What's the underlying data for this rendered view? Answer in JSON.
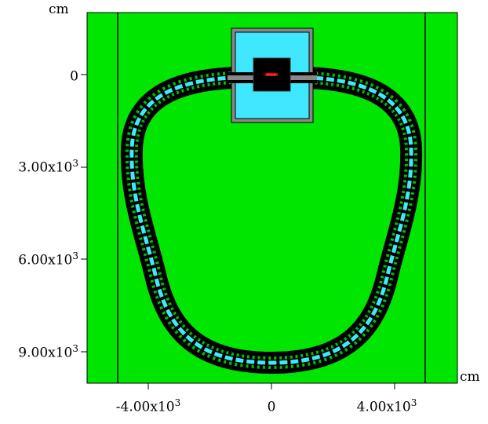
{
  "axes": {
    "y_unit": "cm",
    "x_unit": "cm",
    "y_ticks": [
      {
        "mantissa": "0",
        "exp": ""
      },
      {
        "mantissa": "3.00x10",
        "exp": "3"
      },
      {
        "mantissa": "6.00x10",
        "exp": "3"
      },
      {
        "mantissa": "9.00x10",
        "exp": "3"
      }
    ],
    "x_ticks": [
      {
        "mantissa": "-4.00x10",
        "exp": "3"
      },
      {
        "mantissa": "0",
        "exp": ""
      },
      {
        "mantissa": "4.00x10",
        "exp": "3"
      }
    ]
  },
  "colors": {
    "background_region": "#00e600",
    "vacuum_region": "#40e8ff",
    "structure": "#000000",
    "box_frame": "#888888",
    "target": "#e00000"
  }
}
